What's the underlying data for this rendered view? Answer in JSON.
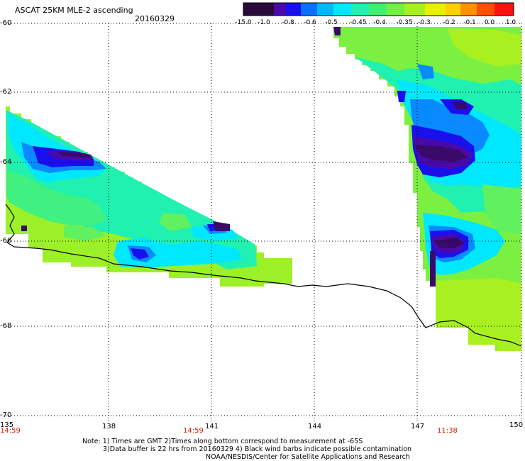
{
  "header": {
    "title": "ASCAT 25KM MLE-2 ascending",
    "date": "20160329"
  },
  "colorbar": {
    "labels": [
      "-15.0",
      "-1.0",
      "-0.8",
      "-0.6",
      "-0.5",
      "-0.45",
      "-0.4",
      "-0.35",
      "-0.3",
      "-0.2",
      "-0.1",
      "0.0",
      "1.0"
    ],
    "colors": [
      "#2a0a3a",
      "#5a0a9a",
      "#2a1aff",
      "#0a8aff",
      "#00d8ff",
      "#40f0a0",
      "#60f060",
      "#90f030",
      "#b8f010",
      "#f0f000",
      "#ffb000",
      "#ff6000",
      "#ff1010"
    ]
  },
  "axes": {
    "y_labels": [
      "-60",
      "-62",
      "-64",
      "-66",
      "-68",
      "-70"
    ],
    "x_labels": [
      "135",
      "138",
      "141",
      "144",
      "147",
      "150"
    ],
    "x_times": [
      "14:59",
      "14:59",
      "11:38"
    ]
  },
  "notes": {
    "line1": "Note: 1) Times are GMT 2)Times along bottom correspond to measurement at -65S",
    "line2": "3)Data buffer is 22 hrs from 20160329 4) Black wind barbs indicate possible contamination",
    "line3": "NOAA/NESDIS/Center for Satellite Applications and Research"
  },
  "palette": {
    "purple": "#3a0a6a",
    "blue": "#1a10ee",
    "cyan": "#00e8ff",
    "teal": "#20f0b0",
    "green": "#60f060",
    "lime": "#a8f020",
    "coast": "#000000"
  }
}
